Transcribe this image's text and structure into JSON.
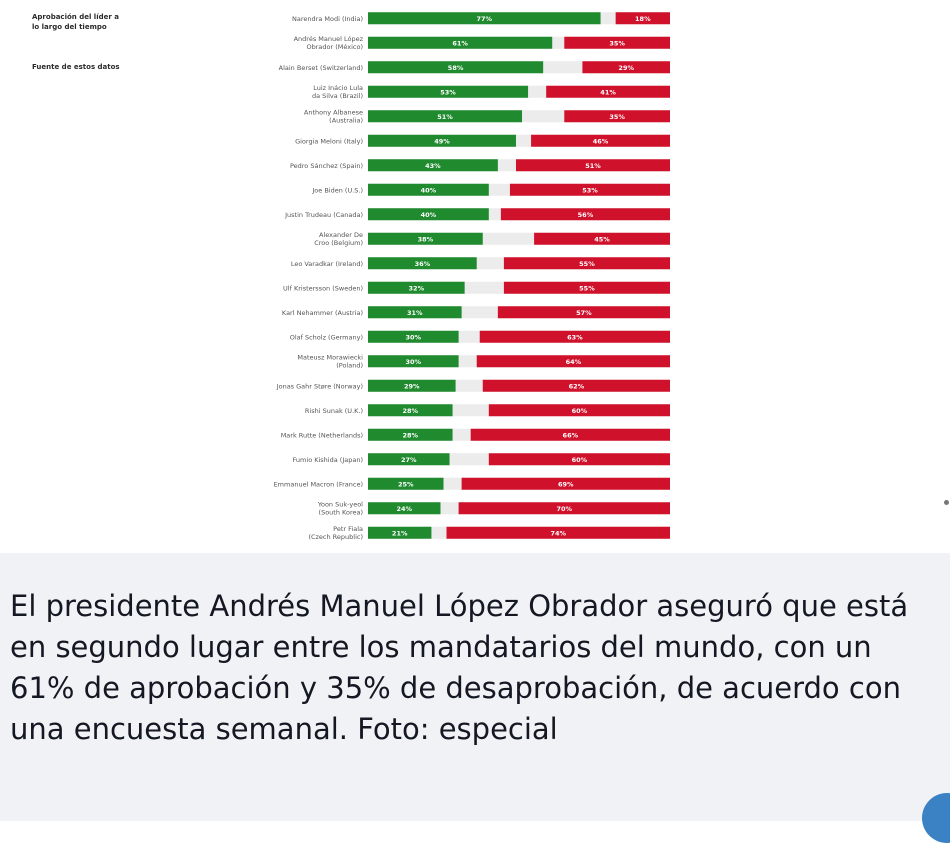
{
  "chart_data": {
    "type": "bar",
    "stacked": true,
    "orientation": "horizontal",
    "side_labels": [
      "Aprobación del líder a",
      "lo largo del tiempo",
      "Fuente de estos datos"
    ],
    "categories": [
      "Narendra Modi (India)",
      "Andrés Manuel López Obrador (México)",
      "Alain Berset (Switzerland)",
      "Luiz Inácio Lula da Silva (Brazil)",
      "Anthony Albanese (Australia)",
      "Giorgia Meloni (Italy)",
      "Pedro Sánchez (Spain)",
      "Joe Biden (U.S.)",
      "Justin Trudeau (Canada)",
      "Alexander De Croo (Belgium)",
      "Leo Varadkar (Ireland)",
      "Ulf Kristersson (Sweden)",
      "Karl Nehammer (Austria)",
      "Olaf Scholz (Germany)",
      "Mateusz Morawiecki (Poland)",
      "Jonas Gahr Støre (Norway)",
      "Rishi Sunak (U.K.)",
      "Mark Rutte (Netherlands)",
      "Fumio Kishida (Japan)",
      "Emmanuel Macron (France)",
      "Yoon Suk-yeol (South Korea)",
      "Petr Fiala (Czech Republic)"
    ],
    "series": [
      {
        "name": "Aprobación",
        "color": "#1f8a2e",
        "values": [
          77,
          61,
          58,
          53,
          51,
          49,
          43,
          40,
          40,
          38,
          36,
          32,
          31,
          30,
          30,
          29,
          28,
          28,
          27,
          25,
          24,
          21
        ]
      },
      {
        "name": "Desaprobación",
        "color": "#d0112b",
        "values": [
          18,
          35,
          29,
          41,
          35,
          46,
          51,
          53,
          56,
          45,
          55,
          55,
          57,
          63,
          64,
          62,
          60,
          66,
          60,
          69,
          70,
          74
        ]
      }
    ],
    "xlim": [
      0,
      100
    ]
  },
  "caption": {
    "text": "El presidente Andrés Manuel López Obrador aseguró que está en segundo lugar entre los mandatarios del mundo, con un 61% de aprobación y 35% de desaprobación, de acuerdo con una encuesta semanal. Foto: especial"
  }
}
